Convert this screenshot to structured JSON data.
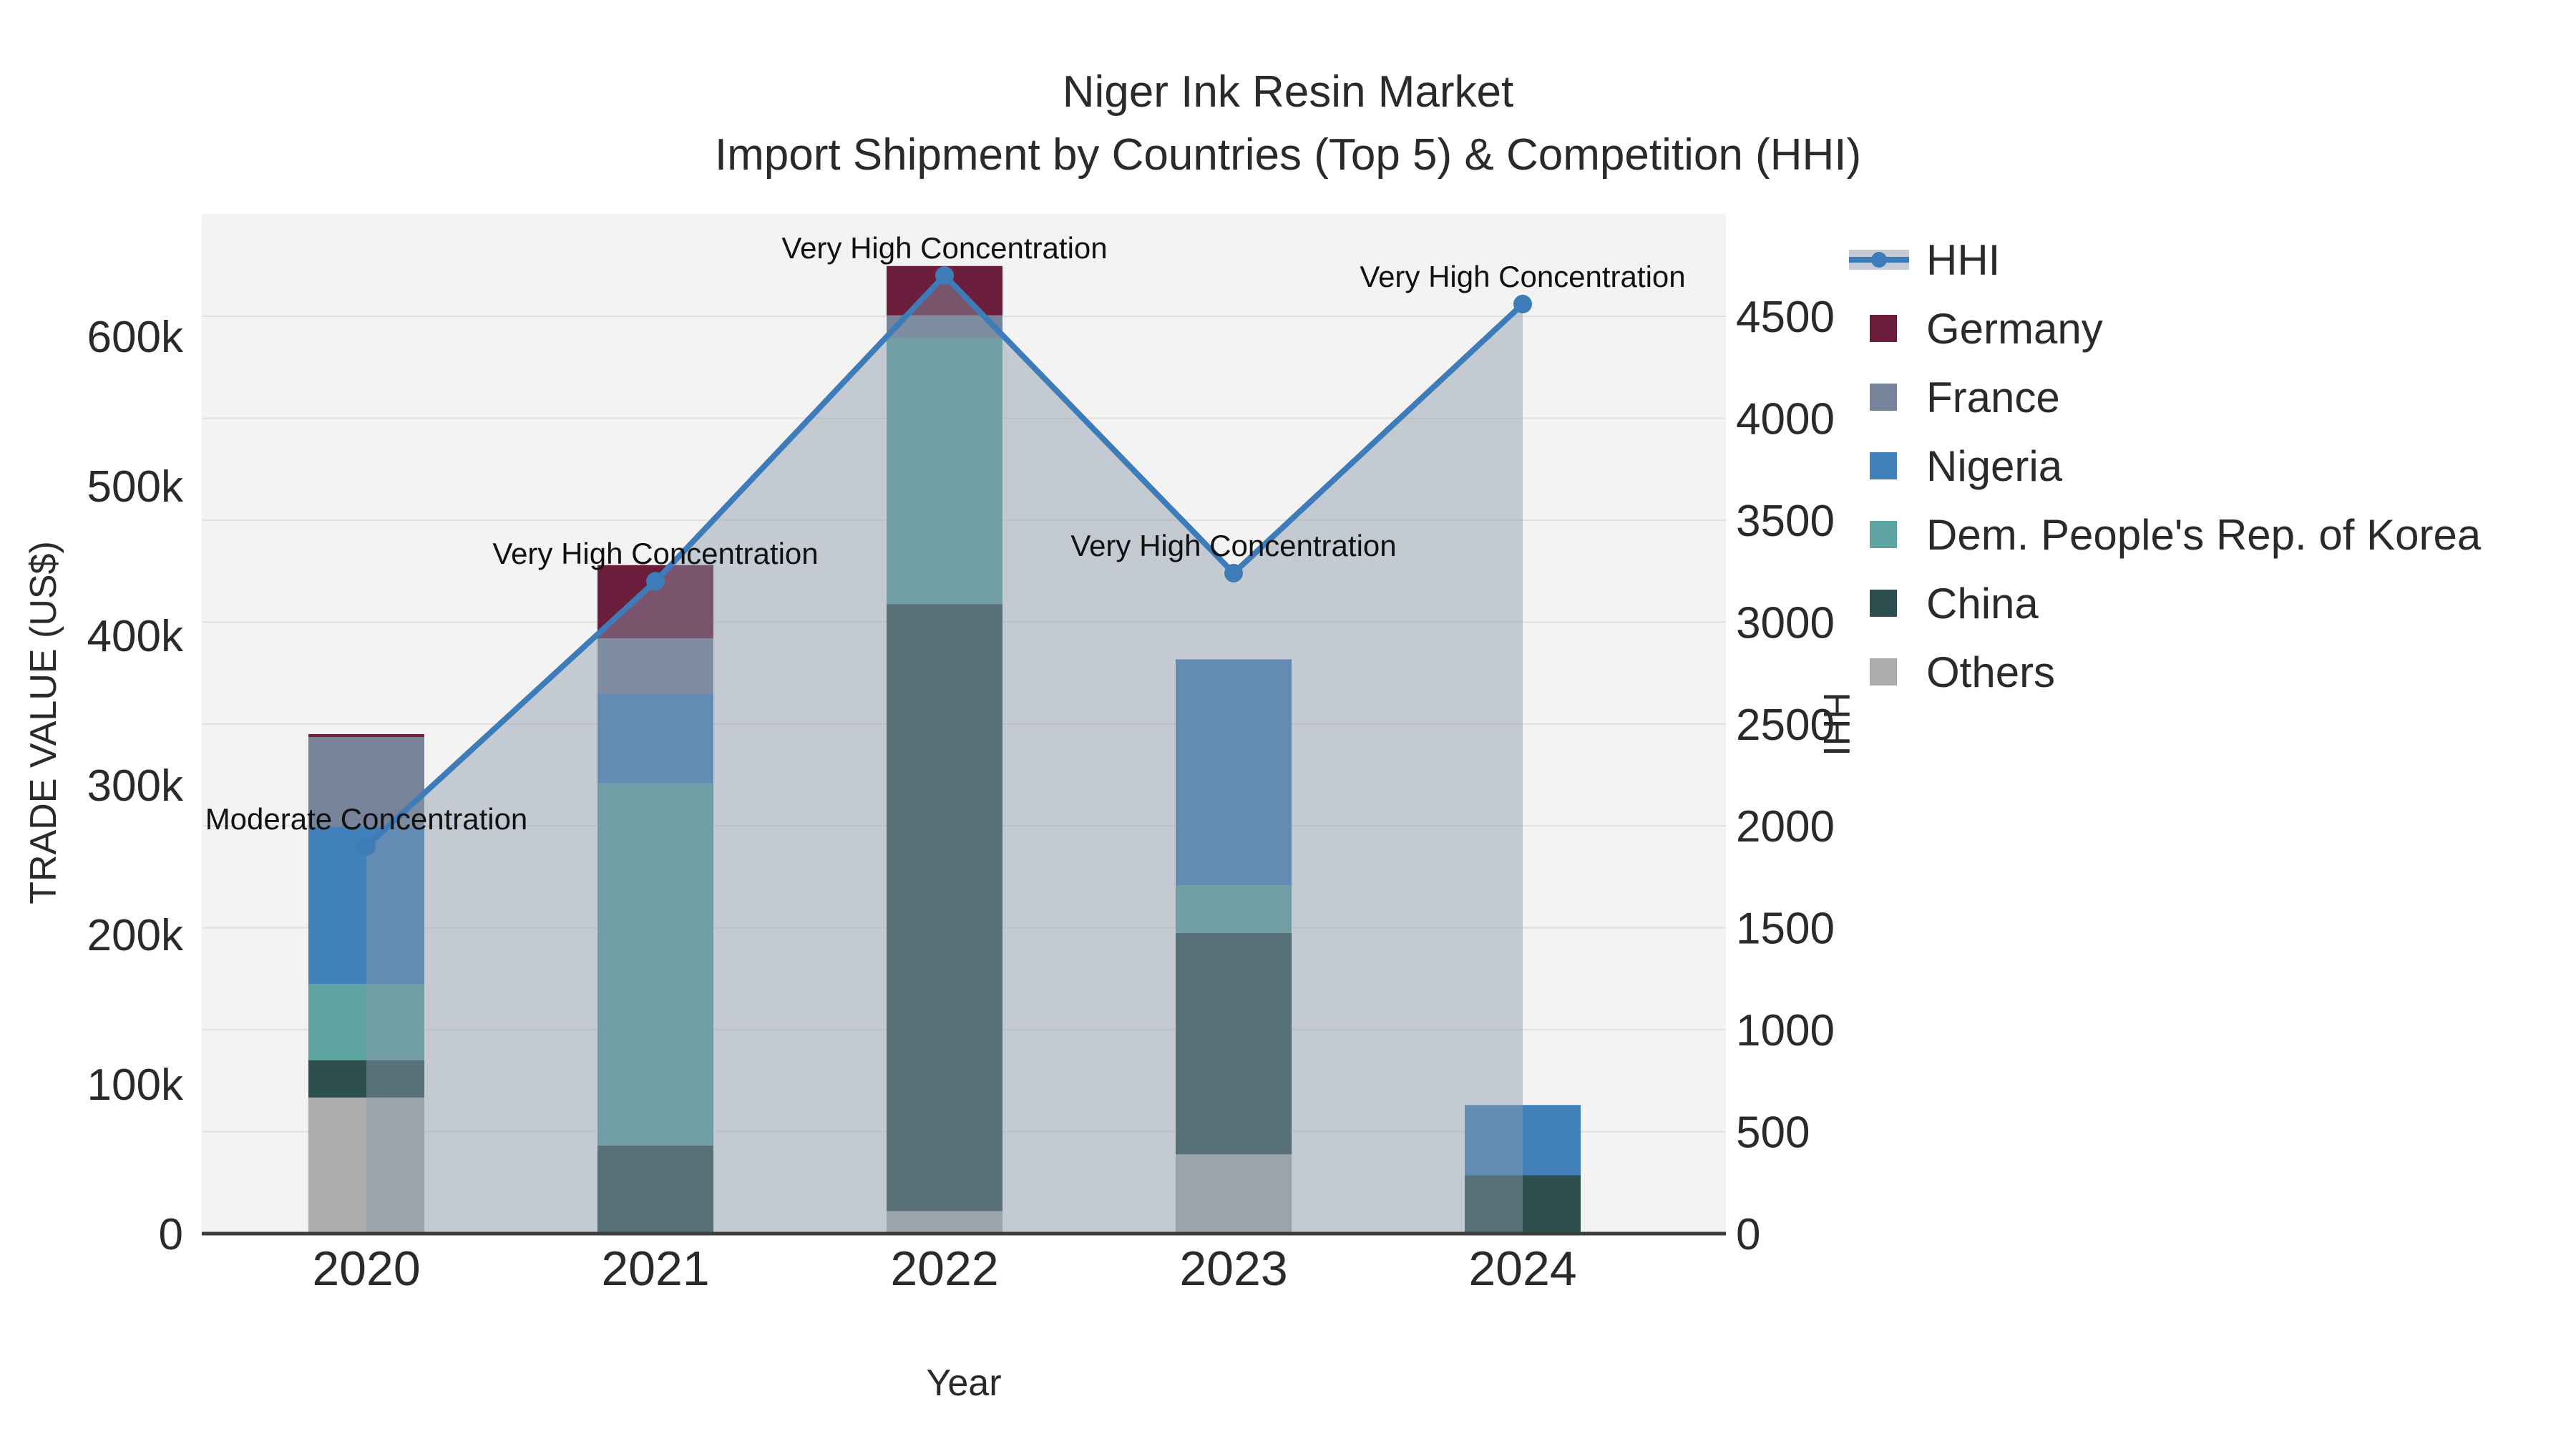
{
  "title": {
    "line1": "Niger Ink Resin Market",
    "line2": "Import Shipment by Countries (Top 5) & Competition (HHI)"
  },
  "axes": {
    "left_title": "TRADE VALUE (US$)",
    "right_title": "HHI",
    "x_title": "Year",
    "left_tick_labels": [
      "0",
      "100k",
      "200k",
      "300k",
      "400k",
      "500k",
      "600k"
    ],
    "left_tick_values": [
      0,
      100000,
      200000,
      300000,
      400000,
      500000,
      600000
    ],
    "right_tick_labels": [
      "0",
      "500",
      "1000",
      "1500",
      "2000",
      "2500",
      "3000",
      "3500",
      "4000",
      "4500"
    ],
    "right_tick_values": [
      0,
      500,
      1000,
      1500,
      2000,
      2500,
      3000,
      3500,
      4000,
      4500
    ],
    "left_range": [
      0,
      680000
    ],
    "right_range": [
      0,
      5000
    ],
    "grid": "horizontal, on right-axis ticks"
  },
  "chart_data": {
    "type": "bar",
    "subtype": "stacked bars with overlaid line (secondary axis)",
    "categories": [
      "2020",
      "2021",
      "2022",
      "2023",
      "2024"
    ],
    "series": [
      {
        "name": "Others",
        "color": "#acacac",
        "values": [
          91000,
          0,
          15000,
          53000,
          0
        ]
      },
      {
        "name": "China",
        "color": "#2e4f4f",
        "values": [
          25000,
          59000,
          406000,
          148000,
          39000
        ]
      },
      {
        "name": "Dem. People's Rep. of Korea",
        "color": "#5ea4a2",
        "values": [
          51000,
          242000,
          178000,
          32000,
          0
        ]
      },
      {
        "name": "Nigeria",
        "color": "#4280bc",
        "values": [
          105000,
          60000,
          0,
          151000,
          47000
        ]
      },
      {
        "name": "France",
        "color": "#76839a",
        "values": [
          60000,
          37000,
          15000,
          0,
          0
        ]
      },
      {
        "name": "Germany",
        "color": "#6b1e3c",
        "values": [
          2000,
          49000,
          33000,
          0,
          0
        ]
      }
    ],
    "line_series": {
      "name": "HHI",
      "color": "#3d7cb8",
      "fill_color": "rgba(140,152,168,0.45)",
      "values": [
        1900,
        3200,
        4700,
        3240,
        4560
      ]
    },
    "annotations": [
      "Moderate Concentration",
      "Very High Concentration",
      "Very High Concentration",
      "Very High Concentration",
      "Very High Concentration"
    ],
    "title": "Niger Ink Resin Market — Import Shipment by Countries (Top 5) & Competition (HHI)",
    "xlabel": "Year",
    "ylabel": "TRADE VALUE (US$)",
    "ylabel_right": "HHI",
    "plot_bg": "#f3f3f3",
    "grid_color": "#e0e0e0",
    "axisline_color": "#3c3c3c",
    "legend_position": "right"
  },
  "legend": {
    "items": [
      {
        "label": "HHI",
        "type": "line",
        "color": "#3d7cb8"
      },
      {
        "label": "Germany",
        "type": "square",
        "color": "#6b1e3c"
      },
      {
        "label": "France",
        "type": "square",
        "color": "#76839a"
      },
      {
        "label": "Nigeria",
        "type": "square",
        "color": "#4280bc"
      },
      {
        "label": "Dem. People's Rep. of Korea",
        "type": "square",
        "color": "#5ea4a2"
      },
      {
        "label": "China",
        "type": "square",
        "color": "#2e4f4f"
      },
      {
        "label": "Others",
        "type": "square",
        "color": "#acacac"
      }
    ]
  }
}
